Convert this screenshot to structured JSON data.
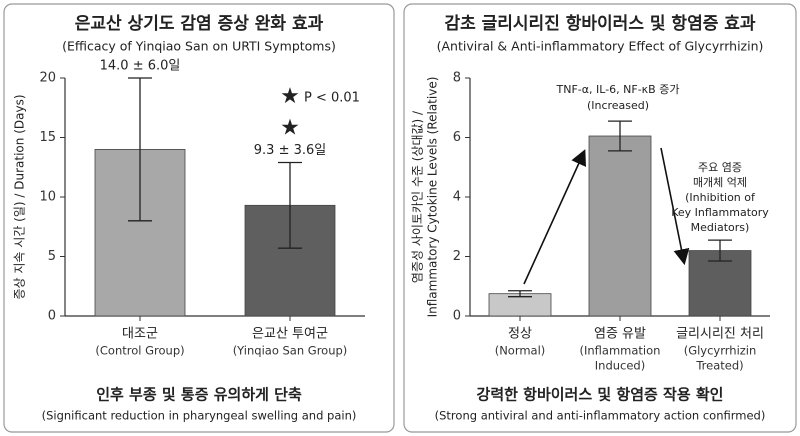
{
  "chart_data": [
    {
      "type": "bar",
      "title": "은교산 상기도 감염 증상 완화 효과",
      "subtitle": "(Efficacy of Yinqiao San on URTI Symptoms)",
      "ylabel": [
        "증상 지속 시간 (일) / Duration (Days)"
      ],
      "categories": [
        "대조군",
        "은교산 투여군"
      ],
      "category_notes": [
        [
          "(Control Group)"
        ],
        [
          "(Yinqiao San Group)"
        ]
      ],
      "values": [
        14.0,
        9.3
      ],
      "errors": [
        6.0,
        3.6
      ],
      "value_labels": [
        "14.0 ± 6.0일",
        "9.3 ± 3.6일"
      ],
      "colors": [
        "#a8a8a8",
        "#5f5f5f"
      ],
      "ylim": [
        0,
        20
      ],
      "yticks": [
        0,
        5,
        10,
        15,
        20
      ],
      "annotations": [
        {
          "lines": [
            "P < 0.01"
          ]
        }
      ],
      "footer": "인후 부종 및 통증 유의하게 단축",
      "footer_note": "(Significant reduction in pharyngeal swelling and pain)"
    },
    {
      "type": "bar",
      "title": "감초 글리시리진 항바이러스 및 항염증 효과",
      "subtitle": "(Antiviral & Anti-inflammatory Effect of Glycyrrhizin)",
      "ylabel": [
        "염증성 사이토카인 수준 (상대값) /",
        "Inflammatory Cytokine Levels (Relative)"
      ],
      "categories": [
        "정상",
        "염증 유발",
        "글리시리진 처리"
      ],
      "category_notes": [
        [
          "(Normal)"
        ],
        [
          "(Inflammation",
          "Induced)"
        ],
        [
          "(Glycyrrhizin",
          "Treated)"
        ]
      ],
      "values": [
        0.75,
        6.05,
        2.2
      ],
      "errors": [
        0.1,
        0.5,
        0.35
      ],
      "colors": [
        "#c8c8c8",
        "#9e9e9e",
        "#5e5e5e"
      ],
      "ylim": [
        0,
        8
      ],
      "yticks": [
        0,
        2,
        4,
        6,
        8
      ],
      "annotations": [
        {
          "lines": [
            "TNF-α, IL-6, NF-κB 증가",
            "(Increased)"
          ]
        },
        {
          "lines": [
            "주요 염증",
            "매개체 억제",
            "(Inhibition of",
            "Key Inflammatory",
            "Mediators)"
          ]
        }
      ],
      "footer": "강력한 항바이러스 및 항염증 작용 확인",
      "footer_note": "(Strong antiviral and anti-inflammatory action confirmed)"
    }
  ]
}
